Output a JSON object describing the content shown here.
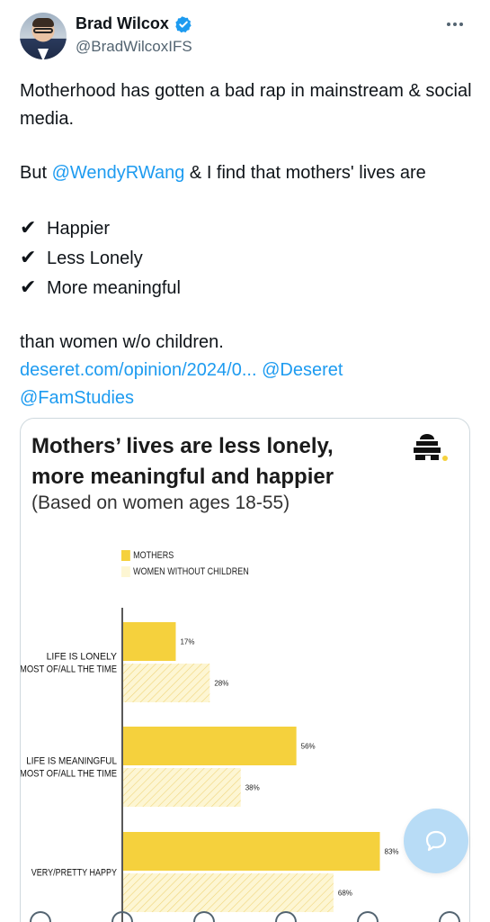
{
  "author": {
    "name": "Brad Wilcox",
    "handle": "@BradWilcoxIFS"
  },
  "tweet": {
    "line1": "Motherhood has gotten a bad rap in mainstream & social media.",
    "line2_prefix": "But ",
    "mention1": "@WendyRWang",
    "line2_suffix": " & I find that mothers' lives are",
    "check_items": [
      "Happier",
      "Less Lonely",
      "More meaningful"
    ],
    "line3": "than women w/o children.",
    "link": "deseret.com/opinion/2024/0...",
    "mention2": "@Deseret",
    "mention3": "@FamStudies"
  },
  "card": {
    "title_line1": "Mothers’ lives are less lonely,",
    "title_line2": "more meaningful and happier",
    "subtitle": "(Based on women ages 18-55)"
  },
  "colors": {
    "accent": "#1d9bf0",
    "mothers": "#f5d13d",
    "women": "#fdf6d3"
  },
  "chart_data": {
    "type": "bar",
    "orientation": "horizontal",
    "categories": [
      [
        "LIFE IS LONELY",
        "MOST OF/ALL THE TIME"
      ],
      [
        "LIFE IS MEANINGFUL",
        "MOST OF/ALL THE TIME"
      ],
      [
        "VERY/PRETTY HAPPY"
      ]
    ],
    "series": [
      {
        "name": "MOTHERS",
        "values": [
          17,
          56,
          83
        ],
        "labels": [
          "17%",
          "56%",
          "83%"
        ]
      },
      {
        "name": "WOMEN WITHOUT CHILDREN",
        "values": [
          28,
          38,
          68
        ],
        "labels": [
          "28%",
          "38%",
          "68%"
        ]
      }
    ],
    "xlim": [
      0,
      100
    ],
    "legend": "top-left"
  },
  "icons": {
    "verified": "verified-badge-icon",
    "more": "more-options-icon",
    "compose": "chat-bubble-icon",
    "logo": "beehive-logo-icon"
  }
}
